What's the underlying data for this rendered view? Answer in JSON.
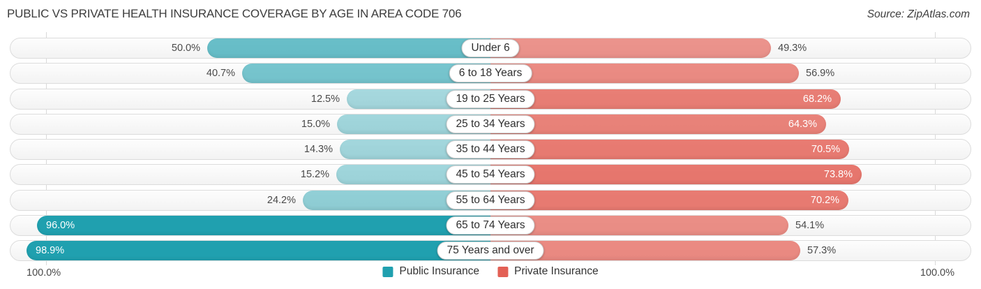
{
  "title": "PUBLIC VS PRIVATE HEALTH INSURANCE COVERAGE BY AGE IN AREA CODE 706",
  "source": "Source: ZipAtlas.com",
  "axis": {
    "left_label": "100.0%",
    "right_label": "100.0%"
  },
  "chart_data": {
    "type": "bar",
    "orientation": "bidirectional-horizontal",
    "title": "Public vs Private Health Insurance Coverage by Age in Area Code 706",
    "value_suffix": "%",
    "xlim_left": [
      100,
      0
    ],
    "xlim_right": [
      0,
      100
    ],
    "grid": "faint vertical lines at 100% marks",
    "legend_position": "bottom-center",
    "categories": [
      "Under 6",
      "6 to 18 Years",
      "19 to 25 Years",
      "25 to 34 Years",
      "35 to 44 Years",
      "45 to 54 Years",
      "55 to 64 Years",
      "65 to 74 Years",
      "75 Years and over"
    ],
    "series": [
      {
        "name": "Public Insurance",
        "side": "left",
        "color": "#20a0af",
        "values": [
          50.0,
          40.7,
          12.5,
          15.0,
          14.3,
          15.2,
          24.2,
          96.0,
          98.9
        ]
      },
      {
        "name": "Private Insurance",
        "side": "right",
        "color": "#e36055",
        "values": [
          49.3,
          56.9,
          68.2,
          64.3,
          70.5,
          73.8,
          70.2,
          54.1,
          57.3
        ]
      }
    ]
  }
}
